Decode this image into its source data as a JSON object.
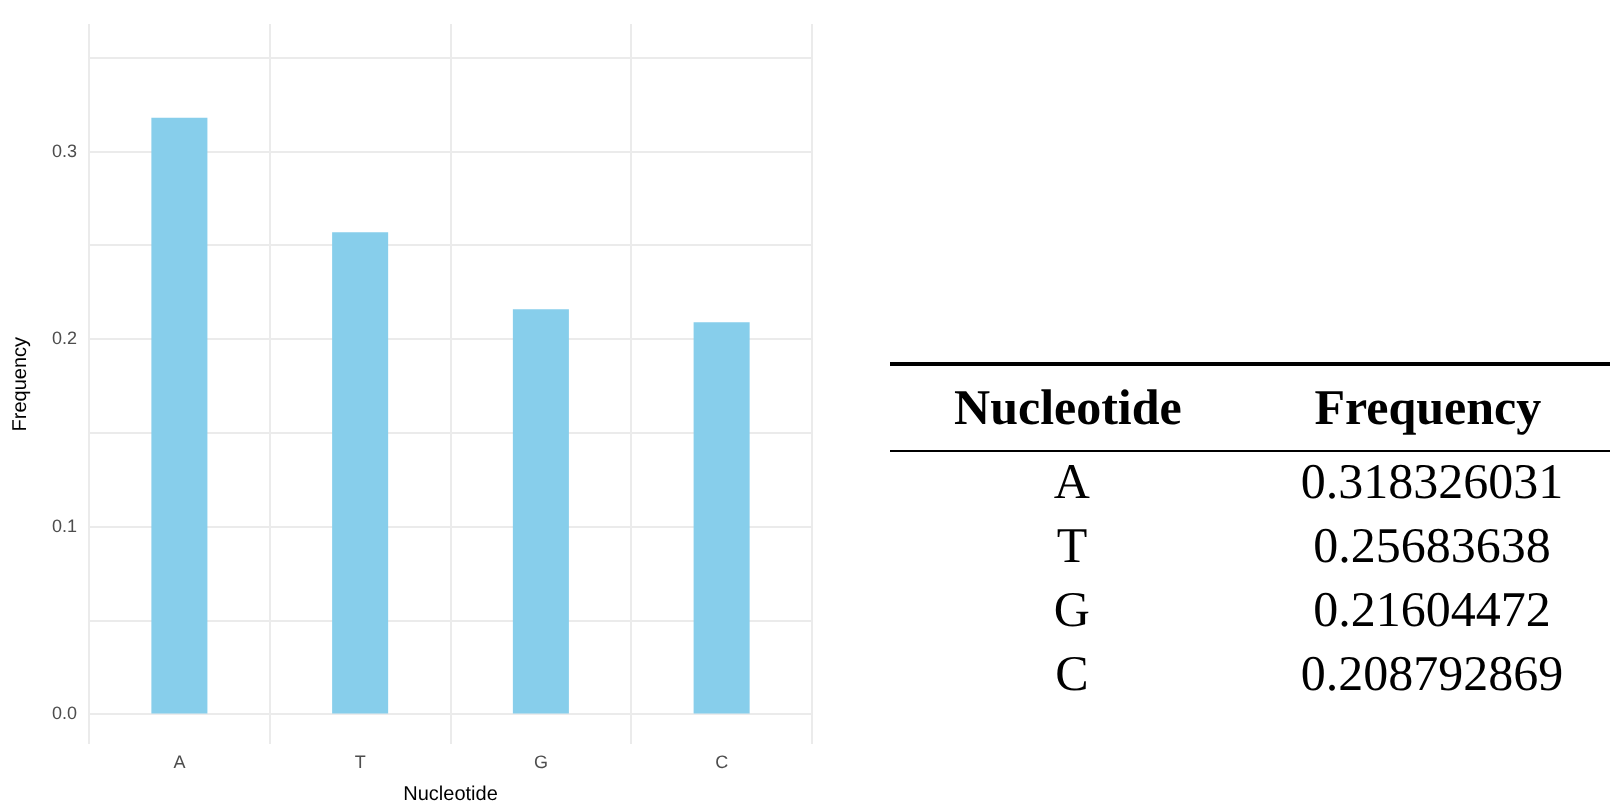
{
  "chart_data": [
    {
      "type": "bar",
      "xlabel": "Nucleotide",
      "ylabel": "Frequency",
      "categories": [
        "A",
        "T",
        "G",
        "C"
      ],
      "values": [
        0.318,
        0.257,
        0.216,
        0.209
      ],
      "color": "#87ceeb",
      "ylim": [
        -0.016,
        0.368
      ],
      "yticks": [
        {
          "value": 0,
          "label": "0.0"
        },
        {
          "value": 0.05,
          "label": null
        },
        {
          "value": 0.1,
          "label": "0.1"
        },
        {
          "value": 0.15,
          "label": null
        },
        {
          "value": 0.2,
          "label": "0.2"
        },
        {
          "value": 0.25,
          "label": null
        },
        {
          "value": 0.3,
          "label": "0.3"
        },
        {
          "value": 0.35,
          "label": null
        }
      ],
      "grid": true
    },
    {
      "type": "other",
      "xlabel": "Nucleotide",
      "ylabel": "Frequency",
      "categories": [
        "A",
        "T",
        "G",
        "C"
      ],
      "values": [
        0.318326031,
        0.25683638,
        0.21604472,
        0.208792869
      ],
      "data_labels": true
    }
  ]
}
